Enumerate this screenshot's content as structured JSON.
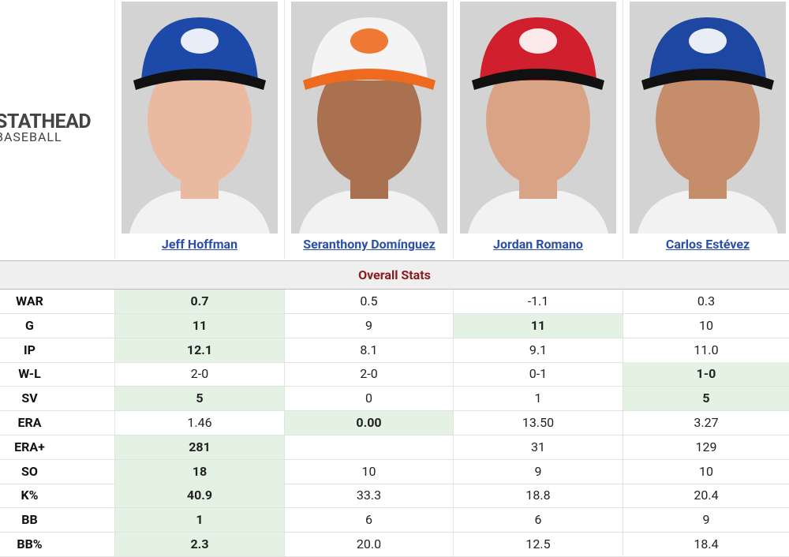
{
  "logo": {
    "line1": "STATHEAD",
    "line2": "BASEBALL"
  },
  "players": [
    "Jeff Hoffman",
    "Seranthony Domínguez",
    "Jordan Romano",
    "Carlos Estévez"
  ],
  "table": {
    "section": "Overall Stats",
    "rows": [
      {
        "label": "WAR",
        "cells": [
          "0.7",
          "0.5",
          "-1.1",
          "0.3"
        ],
        "highlight": [
          0
        ]
      },
      {
        "label": "G",
        "cells": [
          "11",
          "9",
          "11",
          "10"
        ],
        "highlight": [
          0,
          2
        ]
      },
      {
        "label": "IP",
        "cells": [
          "12.1",
          "8.1",
          "9.1",
          "11.0"
        ],
        "highlight": [
          0
        ]
      },
      {
        "label": "W-L",
        "cells": [
          "2-0",
          "2-0",
          "0-1",
          "1-0"
        ],
        "highlight": [
          3
        ]
      },
      {
        "label": "SV",
        "cells": [
          "5",
          "0",
          "1",
          "5"
        ],
        "highlight": [
          0,
          3
        ]
      },
      {
        "label": "ERA",
        "cells": [
          "1.46",
          "0.00",
          "13.50",
          "3.27"
        ],
        "highlight": [
          1
        ]
      },
      {
        "label": "ERA+",
        "cells": [
          "281",
          null,
          "31",
          "129"
        ],
        "highlight": [
          0
        ]
      },
      {
        "label": "SO",
        "cells": [
          "18",
          "10",
          "9",
          "10"
        ],
        "highlight": [
          0
        ]
      },
      {
        "label": "K%",
        "cells": [
          "40.9",
          "33.3",
          "18.8",
          "20.4"
        ],
        "highlight": [
          0
        ]
      },
      {
        "label": "BB",
        "cells": [
          "1",
          "6",
          "6",
          "9"
        ],
        "highlight": [
          0
        ]
      },
      {
        "label": "BB%",
        "cells": [
          "2.3",
          "20.0",
          "12.5",
          "18.4"
        ],
        "highlight": [
          0
        ]
      }
    ]
  }
}
